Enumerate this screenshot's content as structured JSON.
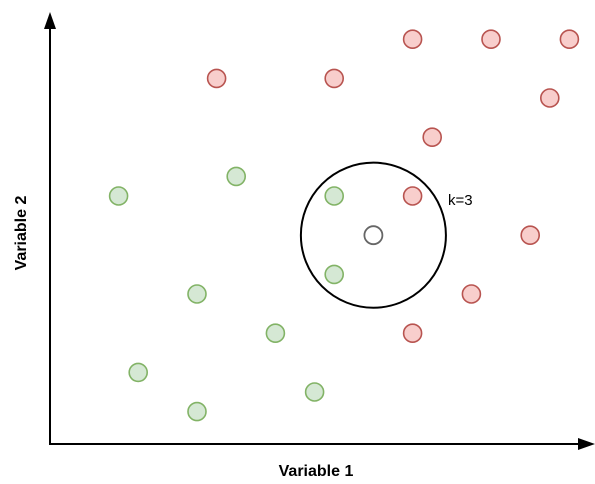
{
  "axes": {
    "x_label": "Variable 1",
    "y_label": "Variable 2"
  },
  "annotation": "k=3",
  "colors": {
    "class_a_fill": "#d5e8d4",
    "class_a_stroke": "#82b366",
    "class_b_fill": "#f8cecc",
    "class_b_stroke": "#b85450",
    "query_stroke": "#666666",
    "axis": "#000000"
  },
  "chart_data": {
    "type": "scatter",
    "x_range": [
      0,
      27
    ],
    "y_range": [
      0,
      21
    ],
    "series": [
      {
        "class": "class_a",
        "points": [
          [
            3.5,
            12.5
          ],
          [
            9.5,
            13.5
          ],
          [
            14.5,
            12.5
          ],
          [
            14.5,
            8.5
          ],
          [
            7.5,
            7.5
          ],
          [
            11.5,
            5.5
          ],
          [
            4.5,
            3.5
          ],
          [
            13.5,
            2.5
          ],
          [
            7.5,
            1.5
          ]
        ]
      },
      {
        "class": "class_b",
        "points": [
          [
            18.5,
            20.5
          ],
          [
            22.5,
            20.5
          ],
          [
            26.5,
            20.5
          ],
          [
            8.5,
            18.5
          ],
          [
            14.5,
            18.5
          ],
          [
            25.5,
            17.5
          ],
          [
            19.5,
            15.5
          ],
          [
            18.5,
            12.5
          ],
          [
            24.5,
            10.5
          ],
          [
            21.5,
            7.5
          ],
          [
            18.5,
            5.5
          ]
        ]
      }
    ],
    "query_point": [
      16.5,
      10.5
    ],
    "neighborhood_radius": 3.7
  }
}
